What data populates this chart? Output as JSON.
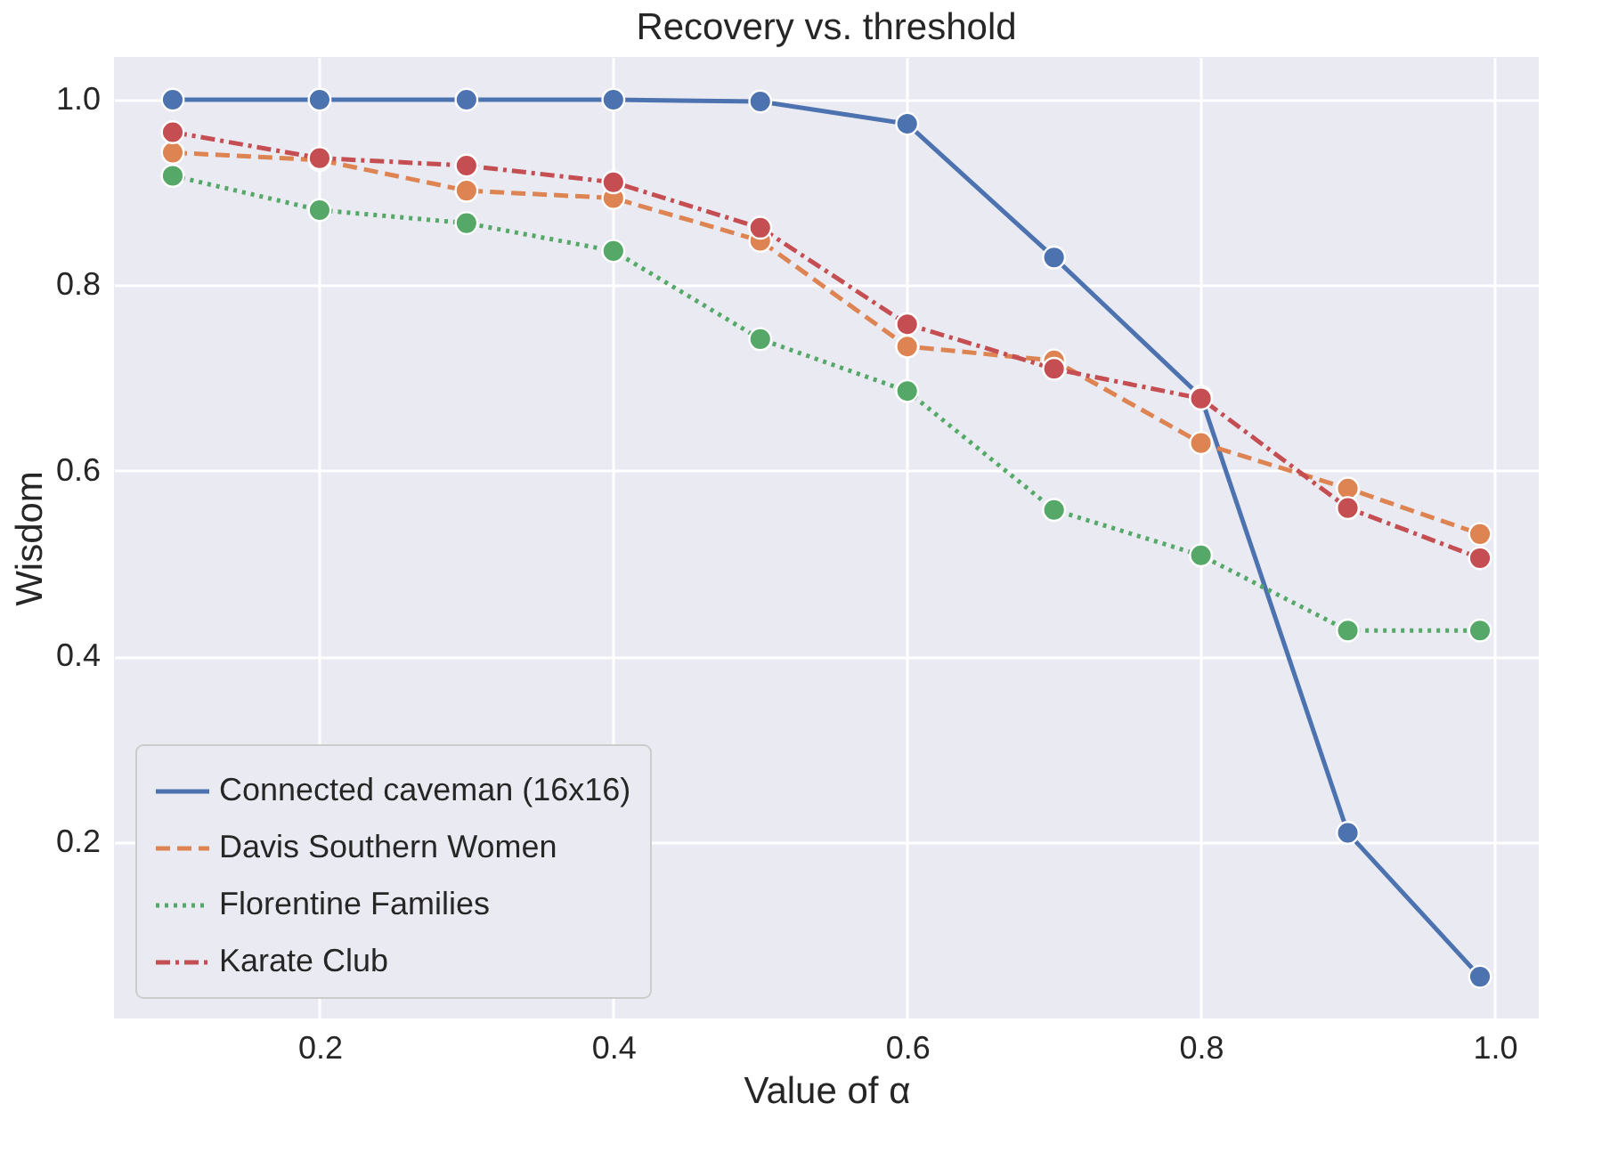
{
  "chart_data": {
    "type": "line",
    "title": "Recovery vs. threshold",
    "xlabel": "Value of α",
    "ylabel": "Wisdom",
    "x": [
      0.1,
      0.2,
      0.3,
      0.4,
      0.5,
      0.6,
      0.7,
      0.8,
      0.9,
      0.99
    ],
    "series": [
      {
        "name": "Connected caveman (16x16)",
        "color": "#4c72b0",
        "line_style": "solid",
        "values": [
          1.0,
          1.0,
          1.0,
          1.0,
          0.998,
          0.974,
          0.83,
          0.68,
          0.21,
          0.055
        ]
      },
      {
        "name": "Davis Southern Women",
        "color": "#dd8452",
        "line_style": "dashed",
        "values": [
          0.943,
          0.935,
          0.902,
          0.894,
          0.848,
          0.734,
          0.719,
          0.63,
          0.581,
          0.532
        ]
      },
      {
        "name": "Florentine Families",
        "color": "#55a868",
        "line_style": "dotted",
        "values": [
          0.918,
          0.881,
          0.867,
          0.837,
          0.742,
          0.686,
          0.558,
          0.509,
          0.428,
          0.428
        ]
      },
      {
        "name": "Karate Club",
        "color": "#c44e52",
        "line_style": "dashdot",
        "values": [
          0.965,
          0.937,
          0.929,
          0.911,
          0.862,
          0.758,
          0.71,
          0.678,
          0.56,
          0.506
        ]
      }
    ],
    "xlim": [
      0.06,
      1.03
    ],
    "ylim": [
      0.01,
      1.046
    ],
    "xticks": [
      0.2,
      0.4,
      0.6,
      0.8,
      {
        "value": 1,
        "label": "1.0"
      }
    ],
    "yticks": [
      0.2,
      0.4,
      0.6,
      0.8,
      {
        "value": 1,
        "label": "1.0"
      }
    ],
    "grid": true,
    "legend": "bottom left",
    "marker": "circle"
  }
}
